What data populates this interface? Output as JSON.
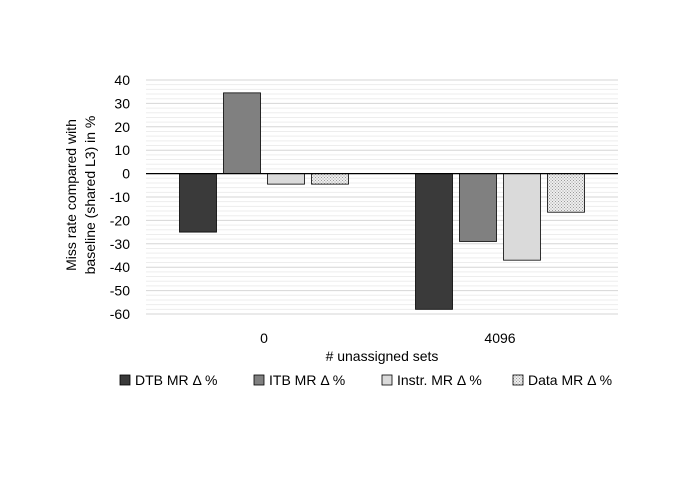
{
  "chart_data": {
    "type": "bar",
    "categories": [
      "0",
      "4096"
    ],
    "xlabel": "# unassigned sets",
    "ylabel_lines": [
      "Miss rate compared with",
      "baseline (shared L3) in %"
    ],
    "ylim": [
      -60,
      40
    ],
    "yticks": [
      40,
      30,
      20,
      10,
      0,
      -10,
      -20,
      -30,
      -40,
      -50,
      -60
    ],
    "grid": true,
    "legend_position": "bottom",
    "series": [
      {
        "name": "DTB MR  Δ %",
        "values": [
          -25,
          -58
        ],
        "color": "#3a3a3a",
        "pattern": "solid"
      },
      {
        "name": "ITB MR Δ %",
        "values": [
          34.5,
          -29
        ],
        "color": "#808080",
        "pattern": "solid"
      },
      {
        "name": "Instr. MR Δ %",
        "values": [
          -4.5,
          -37
        ],
        "color": "#dadada",
        "pattern": "solid"
      },
      {
        "name": "Data MR Δ %",
        "values": [
          -4.5,
          -16.5
        ],
        "color": "#e6e6e6",
        "pattern": "dots"
      }
    ]
  }
}
